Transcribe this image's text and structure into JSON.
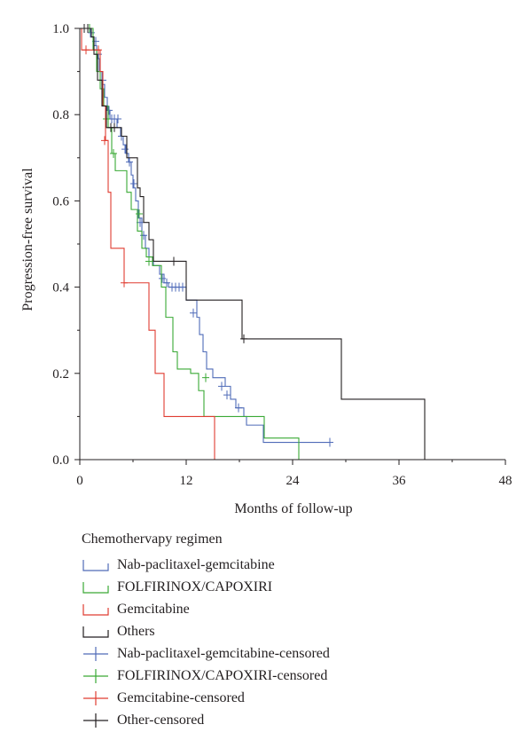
{
  "chart_data": {
    "type": "line",
    "subtype": "kaplan-meier",
    "title": "",
    "xlabel": "Months of follow-up",
    "ylabel": "Progression-free survival",
    "xlim": [
      0,
      48
    ],
    "ylim": [
      0,
      1
    ],
    "xticks": [
      0,
      12,
      24,
      36,
      48
    ],
    "xtick_labels": [
      "0",
      "12",
      "24",
      "36",
      "48"
    ],
    "yticks": [
      0,
      0.2,
      0.4,
      0.6,
      0.8,
      1.0
    ],
    "ytick_labels": [
      "0.0",
      "0.2",
      "0.4",
      "0.6",
      "0.8",
      "1.0"
    ],
    "grid": false,
    "legend_title": "Chemothervapy regimen",
    "legend_position": "bottom",
    "series": [
      {
        "name": "Nab-paclitaxel-gemcitabine",
        "color": "#4f6bb8",
        "steps": [
          [
            0,
            1.0
          ],
          [
            1.2,
            0.98
          ],
          [
            1.6,
            0.96
          ],
          [
            1.9,
            0.93
          ],
          [
            2.2,
            0.9
          ],
          [
            2.5,
            0.87
          ],
          [
            2.8,
            0.84
          ],
          [
            3.1,
            0.81
          ],
          [
            3.4,
            0.79
          ],
          [
            4.2,
            0.77
          ],
          [
            4.6,
            0.75
          ],
          [
            4.9,
            0.73
          ],
          [
            5.2,
            0.71
          ],
          [
            5.5,
            0.69
          ],
          [
            5.8,
            0.66
          ],
          [
            6.0,
            0.63
          ],
          [
            6.3,
            0.6
          ],
          [
            6.6,
            0.56
          ],
          [
            7.0,
            0.52
          ],
          [
            7.4,
            0.49
          ],
          [
            7.8,
            0.47
          ],
          [
            8.3,
            0.45
          ],
          [
            9.0,
            0.43
          ],
          [
            9.5,
            0.41
          ],
          [
            10.0,
            0.4
          ],
          [
            12.0,
            0.37
          ],
          [
            13.2,
            0.33
          ],
          [
            13.5,
            0.29
          ],
          [
            13.9,
            0.25
          ],
          [
            14.3,
            0.21
          ],
          [
            15.0,
            0.19
          ],
          [
            16.4,
            0.17
          ],
          [
            17.0,
            0.14
          ],
          [
            17.6,
            0.12
          ],
          [
            18.5,
            0.1
          ],
          [
            18.8,
            0.08
          ],
          [
            20.7,
            0.04
          ]
        ],
        "end_x": 28.2,
        "censored": [
          [
            1.3,
            0.99
          ],
          [
            1.8,
            0.97
          ],
          [
            2.1,
            0.94
          ],
          [
            2.6,
            0.88
          ],
          [
            3.3,
            0.81
          ],
          [
            3.6,
            0.79
          ],
          [
            3.9,
            0.79
          ],
          [
            4.3,
            0.79
          ],
          [
            4.7,
            0.75
          ],
          [
            5.1,
            0.72
          ],
          [
            5.6,
            0.69
          ],
          [
            6.1,
            0.64
          ],
          [
            6.8,
            0.55
          ],
          [
            7.2,
            0.52
          ],
          [
            9.3,
            0.42
          ],
          [
            9.8,
            0.41
          ],
          [
            10.4,
            0.4
          ],
          [
            10.8,
            0.4
          ],
          [
            11.2,
            0.4
          ],
          [
            11.6,
            0.4
          ],
          [
            12.8,
            0.34
          ],
          [
            16.0,
            0.17
          ],
          [
            16.6,
            0.15
          ],
          [
            17.9,
            0.12
          ],
          [
            28.2,
            0.04
          ]
        ]
      },
      {
        "name": "FOLFIRINOX/CAPOXIRI",
        "color": "#3aa935",
        "steps": [
          [
            0,
            1.0
          ],
          [
            1.5,
            0.95
          ],
          [
            1.9,
            0.9
          ],
          [
            2.3,
            0.86
          ],
          [
            2.7,
            0.82
          ],
          [
            3.2,
            0.77
          ],
          [
            3.6,
            0.71
          ],
          [
            4.0,
            0.67
          ],
          [
            5.3,
            0.62
          ],
          [
            5.8,
            0.58
          ],
          [
            6.5,
            0.53
          ],
          [
            7.0,
            0.49
          ],
          [
            7.5,
            0.47
          ],
          [
            8.2,
            0.45
          ],
          [
            9.2,
            0.4
          ],
          [
            9.7,
            0.33
          ],
          [
            10.5,
            0.25
          ],
          [
            11.0,
            0.21
          ],
          [
            12.5,
            0.2
          ],
          [
            13.4,
            0.16
          ],
          [
            14.0,
            0.1
          ],
          [
            20.8,
            0.05
          ],
          [
            24.7,
            0.0
          ]
        ],
        "end_x": 24.7,
        "censored": [
          [
            1.1,
            1.0
          ],
          [
            3.0,
            0.79
          ],
          [
            3.8,
            0.71
          ],
          [
            6.7,
            0.57
          ],
          [
            7.8,
            0.46
          ],
          [
            14.2,
            0.19
          ]
        ]
      },
      {
        "name": "Gemcitabine",
        "color": "#e03c31",
        "steps": [
          [
            0,
            1.0
          ],
          [
            0.2,
            0.95
          ],
          [
            2.3,
            0.9
          ],
          [
            2.6,
            0.82
          ],
          [
            2.9,
            0.74
          ],
          [
            3.2,
            0.62
          ],
          [
            3.5,
            0.49
          ],
          [
            5.0,
            0.41
          ],
          [
            7.8,
            0.3
          ],
          [
            8.5,
            0.2
          ],
          [
            9.5,
            0.1
          ],
          [
            15.2,
            0.0
          ]
        ],
        "end_x": 15.2,
        "censored": [
          [
            0.7,
            0.95
          ],
          [
            2.1,
            0.95
          ],
          [
            2.8,
            0.74
          ],
          [
            5.0,
            0.41
          ]
        ]
      },
      {
        "name": "Others",
        "color": "#231f20",
        "steps": [
          [
            0,
            1.0
          ],
          [
            1.3,
            0.98
          ],
          [
            1.6,
            0.94
          ],
          [
            2.0,
            0.88
          ],
          [
            2.5,
            0.82
          ],
          [
            3.0,
            0.77
          ],
          [
            4.7,
            0.75
          ],
          [
            5.3,
            0.7
          ],
          [
            6.5,
            0.63
          ],
          [
            6.8,
            0.61
          ],
          [
            7.2,
            0.55
          ],
          [
            7.8,
            0.51
          ],
          [
            8.3,
            0.46
          ],
          [
            12.0,
            0.37
          ],
          [
            18.3,
            0.28
          ],
          [
            29.5,
            0.14
          ],
          [
            38.9,
            0.0
          ]
        ],
        "end_x": 38.9,
        "censored": [
          [
            0.5,
            1.0
          ],
          [
            0.9,
            1.0
          ],
          [
            3.5,
            0.77
          ],
          [
            3.9,
            0.77
          ],
          [
            10.6,
            0.46
          ],
          [
            18.5,
            0.28
          ]
        ]
      }
    ],
    "legend": [
      {
        "label": "Nab-paclitaxel-gemcitabine",
        "color": "#4f6bb8",
        "kind": "step"
      },
      {
        "label": "FOLFIRINOX/CAPOXIRI",
        "color": "#3aa935",
        "kind": "step"
      },
      {
        "label": "Gemcitabine",
        "color": "#e03c31",
        "kind": "step"
      },
      {
        "label": "Others",
        "color": "#231f20",
        "kind": "step"
      },
      {
        "label": "Nab-paclitaxel-gemcitabine-censored",
        "color": "#4f6bb8",
        "kind": "cross"
      },
      {
        "label": "FOLFIRINOX/CAPOXIRI-censored",
        "color": "#3aa935",
        "kind": "cross"
      },
      {
        "label": "Gemcitabine-censored",
        "color": "#e03c31",
        "kind": "cross"
      },
      {
        "label": "Other-censored",
        "color": "#231f20",
        "kind": "cross"
      }
    ]
  }
}
